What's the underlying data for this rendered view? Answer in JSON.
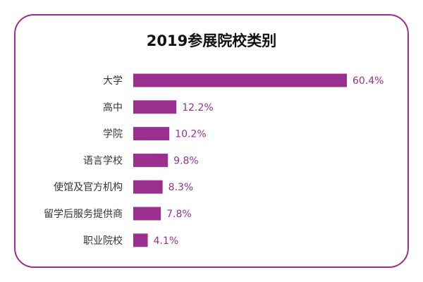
{
  "chart_data": {
    "type": "bar",
    "orientation": "horizontal",
    "title": "2019参展院校类别",
    "categories": [
      "大学",
      "高中",
      "学院",
      "语言学校",
      "使馆及官方机构",
      "留学后服务提供商",
      "职业院校"
    ],
    "values": [
      60.4,
      12.2,
      10.2,
      9.8,
      8.3,
      7.8,
      4.1
    ],
    "value_labels": [
      "60.4%",
      "12.2%",
      "10.2%",
      "9.8%",
      "8.3%",
      "7.8%",
      "4.1%"
    ],
    "xlim": [
      0,
      60.4
    ],
    "grid": false,
    "legend": "none",
    "colors": {
      "bar": "#9b2f90",
      "value_text": "#9b2f90",
      "frame": "#9b2f90"
    }
  }
}
